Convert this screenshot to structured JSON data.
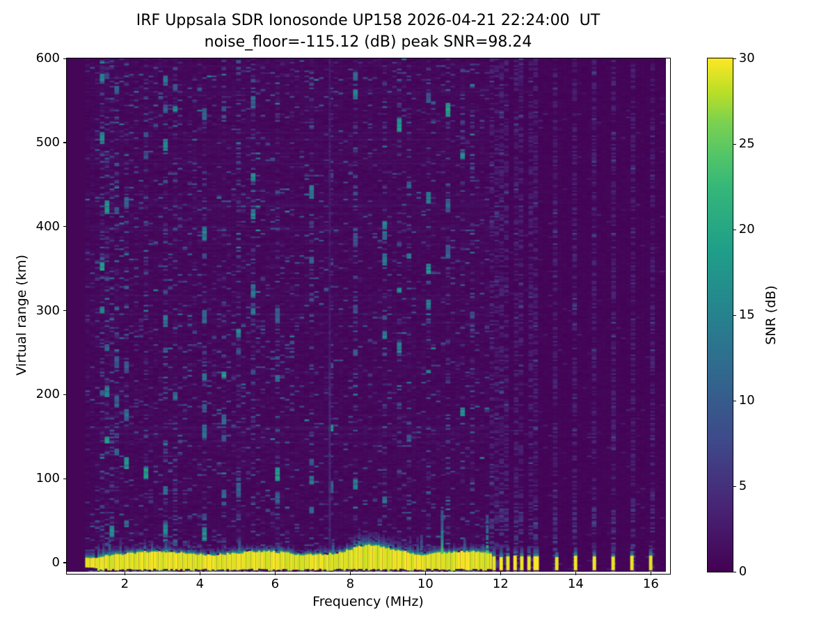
{
  "figure": {
    "background": "#ffffff",
    "text_color": "#000000"
  },
  "chart_data": {
    "type": "heatmap",
    "title_line1": "IRF Uppsala SDR Ionosonde UP158 2026-04-21 22:24:00  UT",
    "title_line2": "noise_floor=-115.12 (dB) peak SNR=98.24",
    "station": "IRF Uppsala SDR Ionosonde UP158",
    "timestamp_ut": "2026-04-21 22:24:00 UT",
    "noise_floor_db": -115.12,
    "peak_snr_db": 98.24,
    "xlabel": "Frequency (MHz)",
    "ylabel": "Virtual range (km)",
    "colorbar_label": "SNR (dB)",
    "xlim": [
      0.46,
      16.43
    ],
    "ylim": [
      -11,
      600
    ],
    "clim": [
      0,
      30
    ],
    "x_ticks": [
      2,
      4,
      6,
      8,
      10,
      12,
      14,
      16
    ],
    "y_ticks": [
      0,
      100,
      200,
      300,
      400,
      500,
      600
    ],
    "colorbar_ticks": [
      0,
      5,
      10,
      15,
      20,
      25,
      30
    ],
    "grid": false,
    "legend_position": "colorbar-right",
    "colormap": {
      "name": "viridis",
      "low_hex": "#440154",
      "high_hex": "#fde725",
      "stops": [
        [
          0.0,
          68,
          1,
          84
        ],
        [
          0.125,
          72,
          36,
          117
        ],
        [
          0.25,
          63,
          72,
          137
        ],
        [
          0.375,
          50,
          101,
          142
        ],
        [
          0.5,
          38,
          130,
          142
        ],
        [
          0.625,
          31,
          158,
          137
        ],
        [
          0.75,
          53,
          183,
          121
        ],
        [
          0.8125,
          84,
          197,
          104
        ],
        [
          0.875,
          122,
          209,
          81
        ],
        [
          0.9375,
          189,
          223,
          38
        ],
        [
          1.0,
          253,
          231,
          37
        ]
      ]
    },
    "heatmap_model": {
      "seed": 42,
      "data_f_start_mhz": 0.95,
      "data_gap_right_mhz": 16.41,
      "ground_echo": {
        "f_start": 0.95,
        "f_end": 11.74,
        "top_km": 10,
        "bottom_km": -7.5,
        "fringe_km": 8,
        "bump_f": 8.55,
        "bump_sigma": 0.55,
        "bump_extra_km": 8,
        "bump2_f": 9.4,
        "bump2_extra_km": 3,
        "core_snr_db": 30
      },
      "bottom_scatter_km": -10.2,
      "carrier_line_mhz": 7.43,
      "rfi_streaks_mhz": [
        1.35,
        1.6,
        1.85,
        2.1,
        2.6,
        3.1,
        3.35,
        4.15,
        4.6,
        5.05,
        5.4,
        6.1,
        7.0,
        7.55,
        8.2,
        8.9,
        9.35,
        9.6,
        10.1,
        10.55,
        11.05,
        11.3
      ],
      "spikes": [
        {
          "f_mhz": 1.6,
          "top_km": 26
        },
        {
          "f_mhz": 3.1,
          "top_km": 24
        },
        {
          "f_mhz": 5.05,
          "top_km": 28
        },
        {
          "f_mhz": 6.1,
          "top_km": 20
        },
        {
          "f_mhz": 7.55,
          "top_km": 26
        },
        {
          "f_mhz": 8.35,
          "top_km": 30
        },
        {
          "f_mhz": 9.9,
          "top_km": 32
        },
        {
          "f_mhz": 10.45,
          "top_km": 65
        },
        {
          "f_mhz": 11.05,
          "top_km": 28
        },
        {
          "f_mhz": 11.65,
          "top_km": 55
        }
      ],
      "discrete_tx_mhz": [
        11.83,
        12.02,
        12.2,
        12.39,
        12.57,
        12.76,
        12.95,
        13.5,
        14.0,
        14.5,
        15.0,
        15.5,
        16.0
      ],
      "wide_bar_mhz": 12.95,
      "speckle_density_low_band": 0.13,
      "speckle_density_mid": 0.085,
      "speckle_density_right": 0.015,
      "discrete_column_density": 0.5
    }
  }
}
